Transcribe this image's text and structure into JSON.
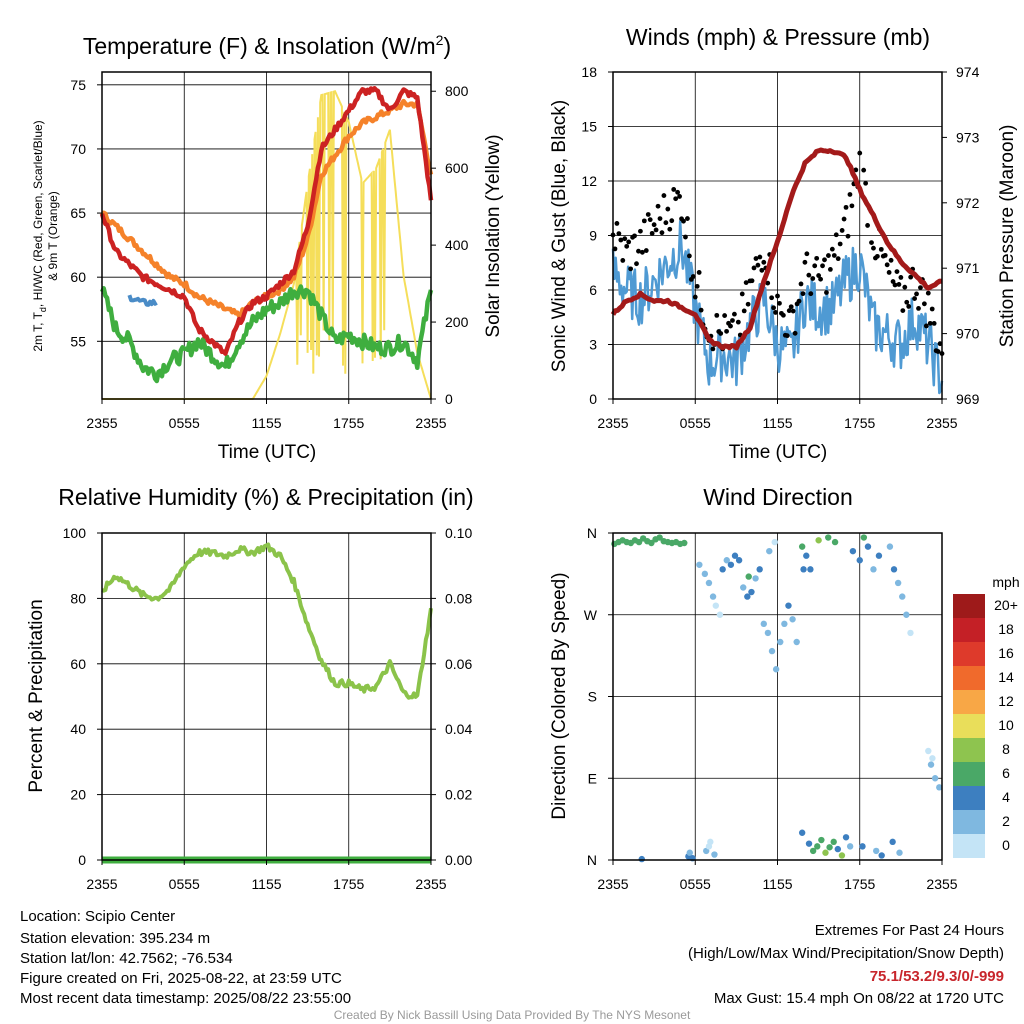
{
  "colors": {
    "temp_red": "#cc2222",
    "dewpoint_green": "#3fae3f",
    "windchill_blue": "#4a8cc7",
    "temp9m_orange": "#f5822a",
    "solar_yellow": "#f5de5a",
    "wind_blue": "#4f9ad3",
    "gust_black": "#000000",
    "pressure_maroon": "#a31a1a",
    "rh_green": "#8bc34a",
    "precip_green": "#3fae3f",
    "extremes_red": "#c8262c",
    "credit_gray": "#9a9a9a"
  },
  "x_ticks": [
    "2355",
    "0555",
    "1155",
    "1755",
    "2355"
  ],
  "panels": {
    "temp": {
      "title": "Temperature (F) & Insolation (W/m²)",
      "xlabel": "Time (UTC)",
      "ylabel_line1": "2m T, T",
      "ylabel_sub": "d",
      "ylabel_line1_rest": ", HI/WC (Red, Green, Scarlet/Blue)",
      "ylabel_line2": "& 9m T (Orange)",
      "y2label": "Solar Insolation (Yellow)",
      "y_ticks": [
        "55",
        "60",
        "65",
        "70",
        "75"
      ],
      "y2_ticks": [
        "0",
        "200",
        "400",
        "600",
        "800"
      ]
    },
    "wind": {
      "title": "Winds (mph) & Pressure (mb)",
      "xlabel": "Time (UTC)",
      "ylabel": "Sonic Wind & Gust (Blue, Black)",
      "y2label": "Station Pressure (Maroon)",
      "y_ticks": [
        "0",
        "3",
        "6",
        "9",
        "12",
        "15",
        "18"
      ],
      "y2_ticks": [
        "969",
        "970",
        "971",
        "972",
        "973",
        "974"
      ]
    },
    "rh": {
      "title": "Relative Humidity (%) & Precipitation (in)",
      "ylabel": "Percent & Precipitation",
      "y_ticks": [
        "0",
        "20",
        "40",
        "60",
        "80",
        "100"
      ],
      "y2_ticks": [
        "0.00",
        "0.02",
        "0.04",
        "0.06",
        "0.08",
        "0.10"
      ]
    },
    "dir": {
      "title": "Wind Direction",
      "ylabel": "Direction (Colored By Speed)",
      "y_ticks": [
        "N",
        "E",
        "S",
        "W",
        "N"
      ],
      "legend_title": "mph",
      "legend_labels": [
        "20+",
        "18",
        "16",
        "14",
        "12",
        "10",
        "8",
        "6",
        "4",
        "2",
        "0"
      ],
      "legend_colors": [
        "#9e1a1a",
        "#c42026",
        "#de3a2b",
        "#f06a2c",
        "#f8a746",
        "#e9de5a",
        "#8ec44f",
        "#4aa867",
        "#3d7fc0",
        "#7fb8e0",
        "#c4e4f6"
      ]
    }
  },
  "footer": {
    "location": "Location: Scipio Center",
    "elevation": "Station elevation: 395.234 m",
    "latlon": "Station lat/lon: 42.7562; -76.534",
    "created": "Figure created on Fri, 2025-08-22, at 23:59 UTC",
    "recent": "Most recent data timestamp: 2025/08/22 23:55:00",
    "extremes_title": "Extremes For Past 24 Hours",
    "extremes_fields": "(High/Low/Max Wind/Precipitation/Snow Depth)",
    "extremes_values": "75.1/53.2/9.3/0/-999",
    "max_gust": "Max Gust: 15.4 mph On 08/22 at 1720 UTC",
    "credit": "Created By Nick Bassill Using Data Provided By The NYS Mesonet"
  },
  "chart_data": [
    {
      "type": "line",
      "title": "Temperature (F) & Insolation (W/m²)",
      "xlabel": "Time (UTC)",
      "x_hours": [
        0,
        1,
        2,
        3,
        4,
        5,
        6,
        7,
        8,
        9,
        10,
        11,
        12,
        13,
        14,
        15,
        16,
        17,
        18,
        19,
        20,
        21,
        22,
        23,
        24
      ],
      "ylim": [
        50.5,
        76
      ],
      "y2lim": [
        0,
        850
      ],
      "series": [
        {
          "key": "t2m",
          "values": [
            65,
            62,
            61,
            60,
            59.5,
            59,
            58.5,
            56,
            55,
            54,
            56.5,
            58,
            58.5,
            59.5,
            60.5,
            64,
            70,
            71.5,
            73,
            74.5,
            74.5,
            73,
            74.5,
            74,
            66
          ]
        },
        {
          "key": "t9m",
          "values": [
            65,
            64,
            63,
            62,
            61,
            60,
            59.5,
            58.5,
            58,
            57.5,
            57,
            58,
            58.5,
            59,
            60,
            63,
            68,
            69.5,
            71,
            72,
            72.5,
            73,
            73.5,
            73.5,
            68
          ]
        },
        {
          "key": "td",
          "values": [
            59,
            56,
            55,
            53,
            52.5,
            53.5,
            54,
            55,
            54,
            53,
            55,
            56.5,
            57.5,
            58,
            59,
            59,
            57,
            55,
            55.5,
            55,
            54.5,
            54.5,
            55,
            53.5,
            59
          ]
        },
        {
          "key": "wc",
          "values": [
            null,
            null,
            58.5,
            58,
            58,
            null,
            null,
            null,
            null,
            null,
            null,
            null,
            null,
            null,
            null,
            null,
            null,
            null,
            null,
            null,
            null,
            null,
            null,
            null,
            null
          ]
        },
        {
          "key": "solar",
          "axis": "y2",
          "values": [
            0,
            0,
            0,
            0,
            0,
            0,
            0,
            0,
            0,
            0,
            0,
            0,
            60,
            170,
            300,
            560,
            790,
            800,
            720,
            560,
            600,
            700,
            320,
            120,
            0
          ]
        }
      ]
    },
    {
      "type": "line",
      "title": "Winds (mph) & Pressure (mb)",
      "xlabel": "Time (UTC)",
      "x_hours": [
        0,
        1,
        2,
        3,
        4,
        5,
        6,
        7,
        8,
        9,
        10,
        11,
        12,
        13,
        14,
        15,
        16,
        17,
        18,
        19,
        20,
        21,
        22,
        23,
        24
      ],
      "ylim": [
        0,
        18
      ],
      "y2lim": [
        969,
        974
      ],
      "series": [
        {
          "key": "wind",
          "values": [
            7,
            6,
            5.5,
            6.5,
            7.5,
            8.5,
            5,
            2,
            2.5,
            2,
            4,
            5.5,
            3,
            2.5,
            5.5,
            5,
            5,
            6.5,
            7.5,
            4,
            3.5,
            3,
            4.5,
            3,
            1
          ]
        },
        {
          "key": "gust",
          "values": [
            9,
            8,
            8.5,
            9.5,
            10.5,
            11,
            6.5,
            4,
            3.5,
            3.5,
            6,
            8.5,
            5,
            4,
            7,
            6.5,
            7.5,
            9.5,
            13,
            9,
            7,
            5.5,
            6.5,
            5,
            2.5
          ]
        },
        {
          "key": "pressure",
          "axis": "y2",
          "values": [
            970.3,
            970.5,
            970.6,
            970.5,
            970.5,
            970.4,
            970.3,
            969.9,
            969.8,
            969.8,
            970.1,
            970.8,
            971.4,
            972.1,
            972.6,
            972.8,
            972.8,
            972.7,
            972.2,
            971.8,
            971.4,
            971.1,
            970.9,
            970.7,
            970.8
          ]
        }
      ]
    },
    {
      "type": "line",
      "title": "Relative Humidity (%) & Precipitation (in)",
      "ylabel": "Percent & Precipitation",
      "x_hours": [
        0,
        1,
        2,
        3,
        4,
        5,
        6,
        7,
        8,
        9,
        10,
        11,
        12,
        13,
        14,
        15,
        16,
        17,
        18,
        19,
        20,
        21,
        22,
        23,
        24
      ],
      "ylim": [
        0,
        100
      ],
      "y2lim": [
        0,
        0.1
      ],
      "series": [
        {
          "key": "rh",
          "values": [
            82,
            87,
            84,
            81,
            80,
            83,
            90,
            94,
            94,
            93,
            95,
            94,
            96,
            93,
            85,
            72,
            61,
            54,
            54,
            52,
            53,
            60,
            51,
            50,
            77
          ]
        },
        {
          "key": "precip",
          "axis": "y2",
          "values": [
            0,
            0,
            0,
            0,
            0,
            0,
            0,
            0,
            0,
            0,
            0,
            0,
            0,
            0,
            0,
            0,
            0,
            0,
            0,
            0,
            0,
            0,
            0,
            0,
            0
          ]
        }
      ]
    },
    {
      "type": "scatter",
      "title": "Wind Direction",
      "ylabel": "Direction (Colored By Speed)",
      "ylim_deg": [
        0,
        360
      ],
      "points": [
        {
          "x": 0.1,
          "d": 348,
          "s": 6
        },
        {
          "x": 0.4,
          "d": 350,
          "s": 7
        },
        {
          "x": 0.7,
          "d": 352,
          "s": 7
        },
        {
          "x": 1.0,
          "d": 350,
          "s": 7
        },
        {
          "x": 1.3,
          "d": 349,
          "s": 6
        },
        {
          "x": 1.6,
          "d": 352,
          "s": 7
        },
        {
          "x": 1.9,
          "d": 350,
          "s": 6
        },
        {
          "x": 2.2,
          "d": 354,
          "s": 6
        },
        {
          "x": 2.5,
          "d": 351,
          "s": 7
        },
        {
          "x": 2.8,
          "d": 349,
          "s": 6
        },
        {
          "x": 3.1,
          "d": 353,
          "s": 7
        },
        {
          "x": 3.4,
          "d": 355,
          "s": 6
        },
        {
          "x": 3.7,
          "d": 351,
          "s": 7
        },
        {
          "x": 4.0,
          "d": 350,
          "s": 7
        },
        {
          "x": 4.3,
          "d": 349,
          "s": 6
        },
        {
          "x": 4.6,
          "d": 350,
          "s": 7
        },
        {
          "x": 4.9,
          "d": 348,
          "s": 6
        },
        {
          "x": 5.2,
          "d": 349,
          "s": 7
        },
        {
          "x": 2.1,
          "d": 1,
          "s": 4
        },
        {
          "x": 5.5,
          "d": 4,
          "s": 4
        },
        {
          "x": 5.6,
          "d": 8,
          "s": 3
        },
        {
          "x": 5.8,
          "d": 2,
          "s": 4
        },
        {
          "x": 6.3,
          "d": 325,
          "s": 2
        },
        {
          "x": 6.7,
          "d": 315,
          "s": 2
        },
        {
          "x": 7.0,
          "d": 305,
          "s": 3
        },
        {
          "x": 7.3,
          "d": 290,
          "s": 2
        },
        {
          "x": 7.5,
          "d": 280,
          "s": 1
        },
        {
          "x": 7.8,
          "d": 270,
          "s": 1
        },
        {
          "x": 6.8,
          "d": 10,
          "s": 2
        },
        {
          "x": 7.0,
          "d": 15,
          "s": 1
        },
        {
          "x": 7.1,
          "d": 20,
          "s": 1
        },
        {
          "x": 7.4,
          "d": 6,
          "s": 2
        },
        {
          "x": 8.0,
          "d": 320,
          "s": 4
        },
        {
          "x": 8.3,
          "d": 330,
          "s": 3
        },
        {
          "x": 8.6,
          "d": 325,
          "s": 4
        },
        {
          "x": 8.9,
          "d": 335,
          "s": 4
        },
        {
          "x": 9.2,
          "d": 330,
          "s": 4
        },
        {
          "x": 9.5,
          "d": 300,
          "s": 3
        },
        {
          "x": 9.8,
          "d": 290,
          "s": 4
        },
        {
          "x": 10.1,
          "d": 295,
          "s": 5
        },
        {
          "x": 10.4,
          "d": 310,
          "s": 3
        },
        {
          "x": 10.7,
          "d": 320,
          "s": 4
        },
        {
          "x": 9.9,
          "d": 312,
          "s": 7
        },
        {
          "x": 11.0,
          "d": 260,
          "s": 3
        },
        {
          "x": 11.3,
          "d": 250,
          "s": 2
        },
        {
          "x": 11.6,
          "d": 230,
          "s": 2
        },
        {
          "x": 11.9,
          "d": 210,
          "s": 3
        },
        {
          "x": 12.2,
          "d": 240,
          "s": 2
        },
        {
          "x": 12.5,
          "d": 260,
          "s": 3
        },
        {
          "x": 12.8,
          "d": 280,
          "s": 4
        },
        {
          "x": 13.1,
          "d": 265,
          "s": 2
        },
        {
          "x": 13.4,
          "d": 240,
          "s": 2
        },
        {
          "x": 11.4,
          "d": 340,
          "s": 2
        },
        {
          "x": 11.8,
          "d": 350,
          "s": 1
        },
        {
          "x": 13.8,
          "d": 345,
          "s": 6
        },
        {
          "x": 14.1,
          "d": 335,
          "s": 5
        },
        {
          "x": 14.4,
          "d": 320,
          "s": 4
        },
        {
          "x": 13.9,
          "d": 320,
          "s": 4
        },
        {
          "x": 13.8,
          "d": 30,
          "s": 4
        },
        {
          "x": 14.3,
          "d": 18,
          "s": 5
        },
        {
          "x": 14.6,
          "d": 10,
          "s": 7
        },
        {
          "x": 14.9,
          "d": 15,
          "s": 6
        },
        {
          "x": 15.2,
          "d": 22,
          "s": 7
        },
        {
          "x": 15.5,
          "d": 8,
          "s": 8
        },
        {
          "x": 15.8,
          "d": 14,
          "s": 6
        },
        {
          "x": 16.1,
          "d": 20,
          "s": 7
        },
        {
          "x": 16.4,
          "d": 12,
          "s": 5
        },
        {
          "x": 16.7,
          "d": 5,
          "s": 8
        },
        {
          "x": 17.0,
          "d": 25,
          "s": 4
        },
        {
          "x": 17.3,
          "d": 15,
          "s": 3
        },
        {
          "x": 15.0,
          "d": 352,
          "s": 8
        },
        {
          "x": 15.7,
          "d": 355,
          "s": 7
        },
        {
          "x": 16.2,
          "d": 350,
          "s": 6
        },
        {
          "x": 17.5,
          "d": 340,
          "s": 4
        },
        {
          "x": 18.0,
          "d": 330,
          "s": 5
        },
        {
          "x": 18.3,
          "d": 355,
          "s": 6
        },
        {
          "x": 18.6,
          "d": 345,
          "s": 4
        },
        {
          "x": 19.0,
          "d": 320,
          "s": 3
        },
        {
          "x": 19.4,
          "d": 335,
          "s": 4
        },
        {
          "x": 18.2,
          "d": 15,
          "s": 4
        },
        {
          "x": 19.2,
          "d": 10,
          "s": 3
        },
        {
          "x": 19.6,
          "d": 5,
          "s": 4
        },
        {
          "x": 20.2,
          "d": 345,
          "s": 3
        },
        {
          "x": 20.5,
          "d": 320,
          "s": 4
        },
        {
          "x": 20.8,
          "d": 305,
          "s": 3
        },
        {
          "x": 21.1,
          "d": 290,
          "s": 2
        },
        {
          "x": 21.4,
          "d": 270,
          "s": 2
        },
        {
          "x": 21.7,
          "d": 250,
          "s": 1
        },
        {
          "x": 20.4,
          "d": 20,
          "s": 4
        },
        {
          "x": 20.9,
          "d": 8,
          "s": 3
        },
        {
          "x": 23.0,
          "d": 120,
          "s": 1
        },
        {
          "x": 23.2,
          "d": 105,
          "s": 2
        },
        {
          "x": 23.5,
          "d": 90,
          "s": 2
        },
        {
          "x": 23.8,
          "d": 80,
          "s": 3
        },
        {
          "x": 23.3,
          "d": 112,
          "s": 1
        }
      ]
    }
  ]
}
